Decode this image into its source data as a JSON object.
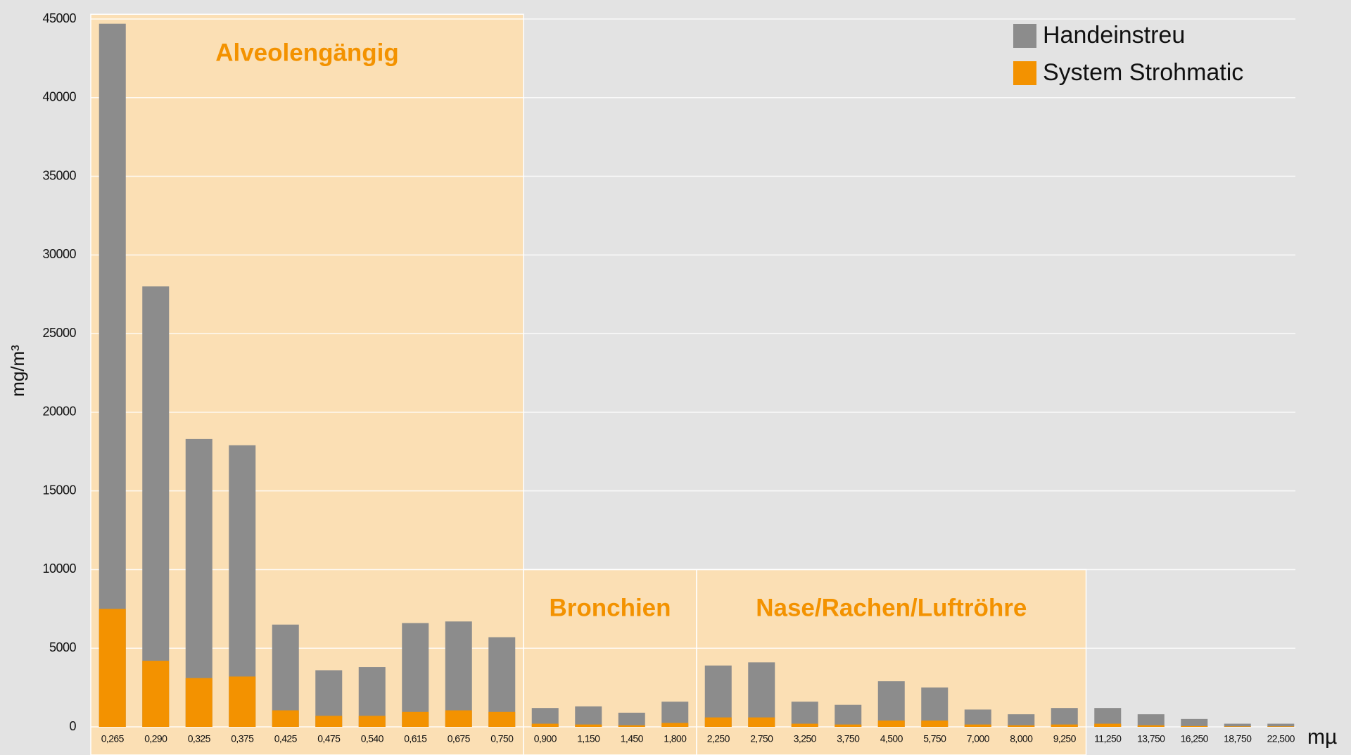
{
  "chart_data": {
    "type": "bar",
    "y_label": "mg/m³",
    "x_unit": "mµ",
    "categories": [
      "0,265",
      "0,290",
      "0,325",
      "0,375",
      "0,425",
      "0,475",
      "0,540",
      "0,615",
      "0,675",
      "0,750",
      "0,900",
      "1,150",
      "1,450",
      "1,800",
      "2,250",
      "2,750",
      "3,250",
      "3,750",
      "4,500",
      "5,750",
      "7,000",
      "8,000",
      "9,250",
      "11,250",
      "13,750",
      "16,250",
      "18,750",
      "22,500"
    ],
    "series": [
      {
        "name": "Handeinstreu",
        "color": "#8c8c8c",
        "values": [
          44700,
          28000,
          18300,
          17900,
          6500,
          3600,
          3800,
          6600,
          6700,
          5700,
          1200,
          1300,
          900,
          1600,
          3900,
          4100,
          1600,
          1400,
          2900,
          2500,
          1100,
          800,
          1200,
          1200,
          800,
          500,
          200,
          200
        ]
      },
      {
        "name": "System Strohmatic",
        "color": "#f39200",
        "values": [
          7500,
          4200,
          3100,
          3200,
          1050,
          700,
          700,
          950,
          1050,
          950,
          200,
          150,
          100,
          250,
          600,
          600,
          200,
          150,
          400,
          400,
          150,
          100,
          150,
          200,
          100,
          50,
          30,
          30
        ]
      }
    ],
    "regions": [
      {
        "label": "Alveolengängig",
        "from": 0,
        "to": 9,
        "top": 45300
      },
      {
        "label": "Bronchien",
        "from": 10,
        "to": 13,
        "top": 10000
      },
      {
        "label": "Nase/Rachen/Luftröhre",
        "from": 14,
        "to": 22,
        "top": 10000
      }
    ],
    "region_color": "#fbdfb4",
    "region_text_color": "#f39200",
    "ylim": [
      0,
      45000
    ],
    "yticks": [
      0,
      5000,
      10000,
      15000,
      20000,
      25000,
      30000,
      35000,
      40000,
      45000
    ],
    "grid": true,
    "legend": "top-right"
  }
}
